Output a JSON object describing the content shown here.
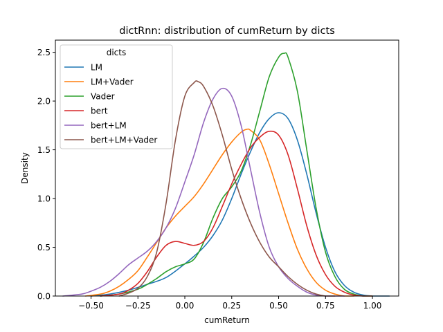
{
  "chart_data": {
    "type": "line",
    "title": "dictRnn: distribution of cumReturn by dicts",
    "xlabel": "cumReturn",
    "ylabel": "Density",
    "xlim": [
      -0.69,
      1.14
    ],
    "ylim": [
      0,
      2.625
    ],
    "xticks": [
      -0.5,
      -0.25,
      0.0,
      0.25,
      0.5,
      0.75,
      1.0
    ],
    "xtick_labels": [
      "−0.50",
      "−0.25",
      "0.00",
      "0.25",
      "0.50",
      "0.75",
      "1.00"
    ],
    "yticks": [
      0.0,
      0.5,
      1.0,
      1.5,
      2.0,
      2.5
    ],
    "ytick_labels": [
      "0.0",
      "0.5",
      "1.0",
      "1.5",
      "2.0",
      "2.5"
    ],
    "legend": {
      "title": "dicts",
      "placement": "upper-left"
    },
    "series": [
      {
        "name": "LM",
        "color": "#1f77b4",
        "x": [
          -0.5,
          -0.4,
          -0.3,
          -0.2,
          -0.1,
          0.0,
          0.05,
          0.1,
          0.15,
          0.2,
          0.25,
          0.3,
          0.35,
          0.4,
          0.45,
          0.5,
          0.55,
          0.6,
          0.65,
          0.7,
          0.75,
          0.8,
          0.85,
          0.9,
          0.95,
          1.0,
          1.05,
          1.09
        ],
        "y": [
          0.0,
          0.02,
          0.06,
          0.12,
          0.19,
          0.33,
          0.41,
          0.5,
          0.62,
          0.78,
          1.0,
          1.25,
          1.48,
          1.68,
          1.82,
          1.88,
          1.82,
          1.6,
          1.25,
          0.85,
          0.5,
          0.25,
          0.11,
          0.04,
          0.01,
          0.0,
          0.0,
          0.0
        ]
      },
      {
        "name": "LM+Vader",
        "color": "#ff7f0e",
        "x": [
          -0.53,
          -0.45,
          -0.4,
          -0.35,
          -0.3,
          -0.25,
          -0.2,
          -0.15,
          -0.1,
          -0.05,
          0.0,
          0.05,
          0.1,
          0.15,
          0.2,
          0.25,
          0.3,
          0.33,
          0.35,
          0.4,
          0.45,
          0.5,
          0.55,
          0.6,
          0.65,
          0.7,
          0.75,
          0.8,
          0.85,
          0.9
        ],
        "y": [
          0.0,
          0.02,
          0.05,
          0.1,
          0.17,
          0.26,
          0.4,
          0.55,
          0.7,
          0.82,
          0.92,
          1.02,
          1.15,
          1.3,
          1.45,
          1.58,
          1.68,
          1.71,
          1.7,
          1.6,
          1.35,
          1.05,
          0.75,
          0.48,
          0.28,
          0.14,
          0.06,
          0.02,
          0.0,
          0.0
        ]
      },
      {
        "name": "Vader",
        "color": "#2ca02c",
        "x": [
          -0.45,
          -0.35,
          -0.25,
          -0.2,
          -0.15,
          -0.1,
          -0.05,
          0.0,
          0.05,
          0.1,
          0.15,
          0.2,
          0.25,
          0.3,
          0.35,
          0.4,
          0.45,
          0.5,
          0.53,
          0.55,
          0.6,
          0.65,
          0.7,
          0.75,
          0.8,
          0.85,
          0.9,
          0.95,
          1.0
        ],
        "y": [
          0.0,
          0.02,
          0.07,
          0.12,
          0.18,
          0.25,
          0.3,
          0.33,
          0.38,
          0.55,
          0.8,
          1.0,
          1.12,
          1.28,
          1.55,
          1.9,
          2.25,
          2.45,
          2.49,
          2.45,
          2.1,
          1.5,
          0.9,
          0.45,
          0.2,
          0.07,
          0.02,
          0.0,
          0.0
        ]
      },
      {
        "name": "bert",
        "color": "#d62728",
        "x": [
          -0.45,
          -0.35,
          -0.3,
          -0.25,
          -0.2,
          -0.15,
          -0.1,
          -0.05,
          0.0,
          0.05,
          0.1,
          0.15,
          0.2,
          0.25,
          0.3,
          0.35,
          0.4,
          0.45,
          0.5,
          0.55,
          0.6,
          0.65,
          0.7,
          0.75,
          0.8,
          0.85,
          0.9,
          0.95,
          1.0
        ],
        "y": [
          0.0,
          0.02,
          0.06,
          0.13,
          0.25,
          0.4,
          0.52,
          0.56,
          0.54,
          0.52,
          0.56,
          0.7,
          0.92,
          1.15,
          1.35,
          1.52,
          1.63,
          1.69,
          1.65,
          1.45,
          1.1,
          0.72,
          0.42,
          0.22,
          0.1,
          0.04,
          0.01,
          0.0,
          0.0
        ]
      },
      {
        "name": "bert+LM",
        "color": "#9467bd",
        "x": [
          -0.65,
          -0.55,
          -0.5,
          -0.45,
          -0.4,
          -0.35,
          -0.3,
          -0.25,
          -0.2,
          -0.15,
          -0.1,
          -0.05,
          0.0,
          0.05,
          0.1,
          0.15,
          0.2,
          0.25,
          0.3,
          0.35,
          0.4,
          0.45,
          0.5,
          0.55,
          0.6,
          0.65,
          0.7,
          0.75,
          0.8,
          0.85
        ],
        "y": [
          0.0,
          0.02,
          0.05,
          0.09,
          0.15,
          0.23,
          0.32,
          0.39,
          0.46,
          0.56,
          0.7,
          0.9,
          1.17,
          1.45,
          1.78,
          2.02,
          2.13,
          2.05,
          1.75,
          1.3,
          0.85,
          0.5,
          0.3,
          0.18,
          0.1,
          0.04,
          0.01,
          0.0,
          0.0,
          0.0
        ]
      },
      {
        "name": "bert+LM+Vader",
        "color": "#8c564b",
        "x": [
          -0.35,
          -0.3,
          -0.25,
          -0.2,
          -0.15,
          -0.1,
          -0.05,
          0.0,
          0.05,
          0.07,
          0.1,
          0.15,
          0.2,
          0.25,
          0.3,
          0.35,
          0.4,
          0.45,
          0.5,
          0.55,
          0.6,
          0.65,
          0.7,
          0.75,
          0.8
        ],
        "y": [
          0.0,
          0.03,
          0.08,
          0.2,
          0.45,
          0.95,
          1.6,
          2.05,
          2.19,
          2.2,
          2.15,
          1.95,
          1.65,
          1.3,
          1.0,
          0.75,
          0.55,
          0.4,
          0.3,
          0.2,
          0.12,
          0.06,
          0.02,
          0.0,
          0.0
        ]
      }
    ]
  }
}
